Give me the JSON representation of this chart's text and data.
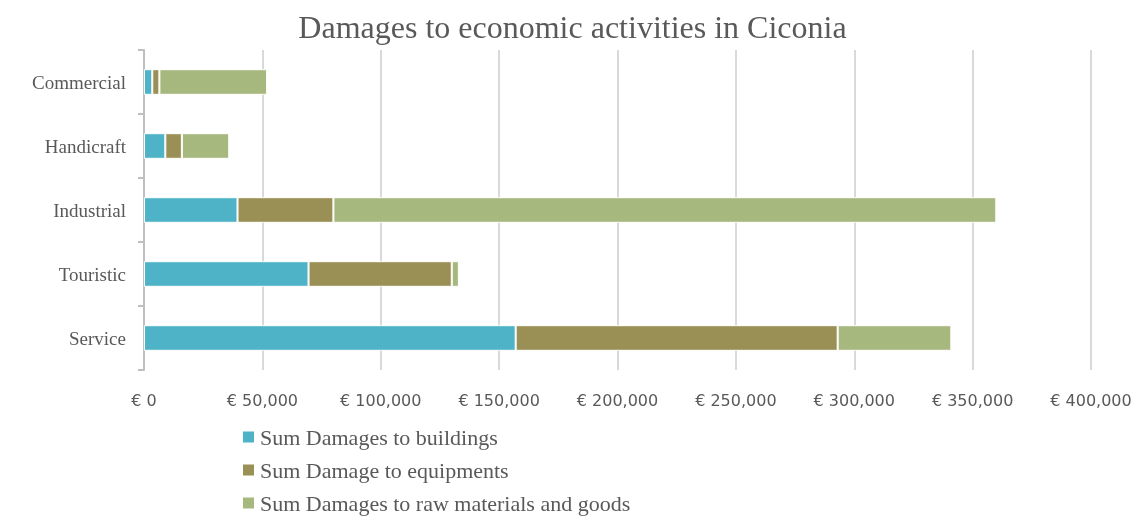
{
  "chart_data": {
    "type": "bar",
    "orientation": "horizontal",
    "stacked": true,
    "title": "Damages to economic activities in Ciconia",
    "categories": [
      "Commercial",
      "Handicraft",
      "Industrial",
      "Touristic",
      "Service"
    ],
    "series": [
      {
        "name": "Sum Damages to buildings",
        "color": "#4fb3c8",
        "values": [
          3500,
          9000,
          39500,
          69500,
          157000
        ]
      },
      {
        "name": "Sum Damage to equipments",
        "color": "#9a9055",
        "values": [
          3000,
          7000,
          40500,
          60500,
          136000
        ]
      },
      {
        "name": "Sum Damages to raw materials and goods",
        "color": "#a7b87f",
        "values": [
          45500,
          20000,
          280000,
          3000,
          48000
        ]
      }
    ],
    "xlim": [
      0,
      400000
    ],
    "xticks": [
      {
        "value": 0,
        "label": "€ 0"
      },
      {
        "value": 50000,
        "label": "€ 50,000"
      },
      {
        "value": 100000,
        "label": "€ 100,000"
      },
      {
        "value": 150000,
        "label": "€ 150,000"
      },
      {
        "value": 200000,
        "label": "€ 200,000"
      },
      {
        "value": 250000,
        "label": "€ 250,000"
      },
      {
        "value": 300000,
        "label": "€ 300,000"
      },
      {
        "value": 350000,
        "label": "€ 350,000"
      },
      {
        "value": 400000,
        "label": "€ 400,000"
      }
    ],
    "grid": "x",
    "legend": "bottom"
  }
}
